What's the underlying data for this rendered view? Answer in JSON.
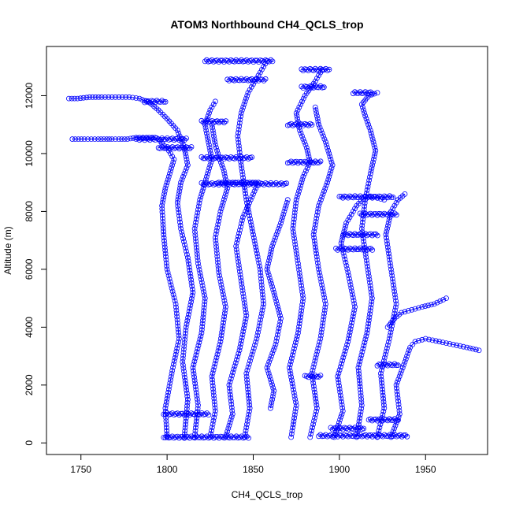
{
  "chart_data": {
    "type": "scatter",
    "title": "ATOM3 Northbound CH4_QCLS_trop",
    "xlabel": "CH4_QCLS_trop",
    "ylabel": "Altitude (m)",
    "xlim": [
      1730,
      1986
    ],
    "ylim": [
      -400,
      13700
    ],
    "xticks": [
      1750,
      1800,
      1850,
      1900,
      1950
    ],
    "yticks": [
      0,
      2000,
      4000,
      6000,
      8000,
      10000,
      12000
    ],
    "grid": false,
    "legend": "none",
    "marker": "open-circle",
    "connected": true,
    "color": "#0000ff",
    "series": [
      {
        "x": [
          1800,
          1799,
          1803,
          1807,
          1805,
          1800,
          1798,
          1797,
          1799,
          1802,
          1804,
          1801,
          1797,
          1795,
          1793,
          1788,
          1782,
          1777,
          1772,
          1768,
          1765,
          1760,
          1752,
          1745
        ],
        "y": [
          200,
          1200,
          2500,
          3600,
          4800,
          6000,
          7200,
          8200,
          8800,
          9400,
          9800,
          10100,
          10350,
          10500,
          10550,
          10550,
          10550,
          10500,
          10500,
          10500,
          10500,
          10500,
          10500,
          10500
        ]
      },
      {
        "x": [
          1810,
          1812,
          1809,
          1811,
          1815,
          1812,
          1808,
          1806,
          1808,
          1812,
          1810,
          1806,
          1800,
          1795,
          1790,
          1784,
          1778,
          1770,
          1762,
          1755,
          1748,
          1743
        ],
        "y": [
          200,
          1500,
          2800,
          4000,
          5200,
          6400,
          7400,
          8300,
          9000,
          9600,
          10200,
          10800,
          11200,
          11500,
          11750,
          11900,
          11950,
          11950,
          11950,
          11950,
          11900,
          11900
        ]
      },
      {
        "x": [
          1816,
          1818,
          1815,
          1820,
          1822,
          1818,
          1816,
          1819,
          1823,
          1826,
          1824,
          1822,
          1825,
          1828
        ],
        "y": [
          200,
          1300,
          2600,
          3800,
          5000,
          6200,
          7400,
          8400,
          9200,
          9800,
          10400,
          11000,
          11500,
          11800
        ]
      },
      {
        "x": [
          1825,
          1828,
          1826,
          1831,
          1834,
          1830,
          1828,
          1831,
          1835,
          1833,
          1830,
          1828,
          1826
        ],
        "y": [
          200,
          1100,
          2300,
          3500,
          4700,
          5900,
          7100,
          8000,
          8800,
          9400,
          9900,
          10300,
          11000
        ]
      },
      {
        "x": [
          1834,
          1838,
          1836,
          1842,
          1846,
          1843,
          1840,
          1844,
          1850,
          1853,
          1848,
          1843,
          1838,
          1834,
          1830
        ],
        "y": [
          200,
          1000,
          2000,
          3200,
          4400,
          5600,
          6800,
          7800,
          8600,
          9000,
          9000,
          9000,
          9000,
          9000,
          9000
        ]
      },
      {
        "x": [
          1845,
          1848,
          1846,
          1852,
          1856,
          1854,
          1850,
          1846,
          1843,
          1841,
          1843,
          1847,
          1852,
          1858
        ],
        "y": [
          200,
          1200,
          2400,
          3600,
          4800,
          6000,
          7200,
          8400,
          9600,
          10600,
          11400,
          12100,
          12600,
          13200
        ]
      },
      {
        "x": [
          1872,
          1875,
          1871,
          1876,
          1879,
          1876,
          1873,
          1875,
          1879,
          1883,
          1881,
          1877,
          1875,
          1880,
          1886,
          1890
        ],
        "y": [
          200,
          1300,
          2600,
          3800,
          5000,
          6200,
          7400,
          8400,
          9200,
          9700,
          10200,
          10800,
          11400,
          12000,
          12500,
          12900
        ]
      },
      {
        "x": [
          1883,
          1887,
          1884,
          1889,
          1892,
          1888,
          1885,
          1888,
          1893,
          1896,
          1892,
          1888,
          1886
        ],
        "y": [
          200,
          1200,
          2400,
          3600,
          4800,
          6000,
          7200,
          8200,
          9000,
          9600,
          10400,
          11000,
          11600
        ]
      },
      {
        "x": [
          1897,
          1902,
          1899,
          1905,
          1909,
          1905,
          1901,
          1904,
          1910,
          1915,
          1920,
          1926
        ],
        "y": [
          200,
          1100,
          2300,
          3500,
          4700,
          5900,
          6900,
          7600,
          8200,
          8500,
          8500,
          8400
        ]
      },
      {
        "x": [
          1910,
          1913,
          1911,
          1916,
          1919,
          1916,
          1913,
          1915,
          1918,
          1921,
          1918,
          1915,
          1913,
          1917,
          1922
        ],
        "y": [
          200,
          1300,
          2600,
          3800,
          5000,
          6200,
          7400,
          8400,
          9300,
          10100,
          10800,
          11300,
          11700,
          12000,
          12100
        ]
      },
      {
        "x": [
          1922,
          1926,
          1924,
          1929,
          1933,
          1930,
          1927,
          1930,
          1934,
          1938
        ],
        "y": [
          200,
          1200,
          2400,
          3600,
          4800,
          6000,
          7200,
          8000,
          8400,
          8600
        ]
      },
      {
        "x": [
          1930,
          1935,
          1933,
          1938,
          1941,
          1944,
          1950,
          1958,
          1966,
          1974,
          1981
        ],
        "y": [
          200,
          1000,
          2000,
          2800,
          3300,
          3500,
          3600,
          3500,
          3400,
          3300,
          3200
        ]
      },
      {
        "x": [
          1928,
          1932,
          1936,
          1942,
          1948,
          1955,
          1962
        ],
        "y": [
          4000,
          4300,
          4500,
          4600,
          4700,
          4800,
          5000
        ]
      },
      {
        "x": [
          1860,
          1862,
          1858,
          1863,
          1866,
          1862,
          1858,
          1861,
          1866,
          1870
        ],
        "y": [
          1200,
          1800,
          2600,
          3400,
          4300,
          5200,
          6000,
          6800,
          7600,
          8400
        ]
      }
    ],
    "dense_bands": [
      {
        "x_range": [
          1798,
          1848
        ],
        "y": 200
      },
      {
        "x_range": [
          1888,
          1940
        ],
        "y": 250
      },
      {
        "x_range": [
          1895,
          1915
        ],
        "y": 500
      },
      {
        "x_range": [
          1917,
          1935
        ],
        "y": 800
      },
      {
        "x_range": [
          1798,
          1825
        ],
        "y": 1000
      },
      {
        "x_range": [
          1880,
          1890
        ],
        "y": 2300
      },
      {
        "x_range": [
          1922,
          1935
        ],
        "y": 2700
      },
      {
        "x_range": [
          1898,
          1920
        ],
        "y": 6700
      },
      {
        "x_range": [
          1902,
          1923
        ],
        "y": 7200
      },
      {
        "x_range": [
          1912,
          1934
        ],
        "y": 7900
      },
      {
        "x_range": [
          1900,
          1932
        ],
        "y": 8500
      },
      {
        "x_range": [
          1820,
          1870
        ],
        "y": 8950
      },
      {
        "x_range": [
          1820,
          1850
        ],
        "y": 9850
      },
      {
        "x_range": [
          1870,
          1890
        ],
        "y": 9700
      },
      {
        "x_range": [
          1795,
          1815
        ],
        "y": 10200
      },
      {
        "x_range": [
          1782,
          1812
        ],
        "y": 10500
      },
      {
        "x_range": [
          1870,
          1885
        ],
        "y": 11000
      },
      {
        "x_range": [
          1820,
          1835
        ],
        "y": 11100
      },
      {
        "x_range": [
          1787,
          1800
        ],
        "y": 11800
      },
      {
        "x_range": [
          1908,
          1920
        ],
        "y": 12100
      },
      {
        "x_range": [
          1878,
          1892
        ],
        "y": 12300
      },
      {
        "x_range": [
          1835,
          1858
        ],
        "y": 12550
      },
      {
        "x_range": [
          1878,
          1895
        ],
        "y": 12900
      },
      {
        "x_range": [
          1822,
          1862
        ],
        "y": 13200
      }
    ]
  }
}
